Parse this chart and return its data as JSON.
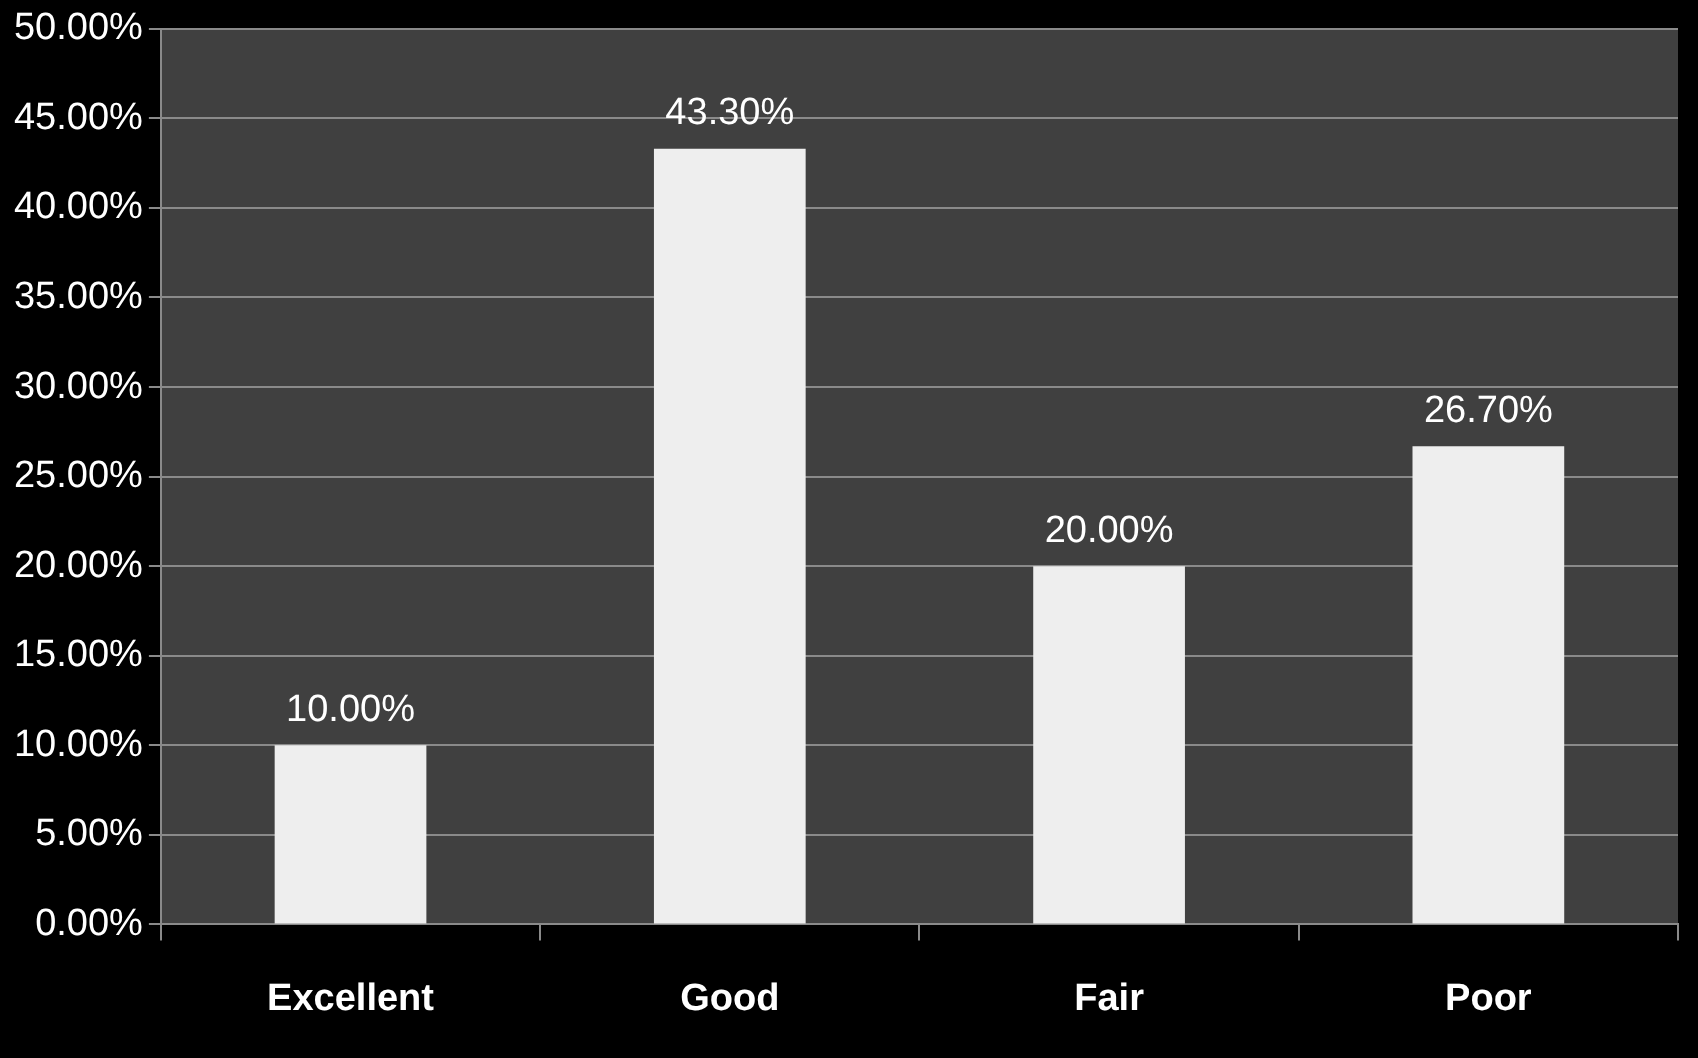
{
  "chart_data": {
    "type": "bar",
    "categories": [
      "Excellent",
      "Good",
      "Fair",
      "Poor"
    ],
    "values": [
      10,
      43.3,
      20,
      26.7
    ],
    "color": "#eeeeee",
    "value_labels": [
      "10.00%",
      "43.30%",
      "20.00%",
      "26.70%"
    ],
    "ylim": [
      0,
      50
    ],
    "yticks": [
      {
        "value": 0,
        "label": "0.00%"
      },
      {
        "value": 5,
        "label": "5.00%"
      },
      {
        "value": 10,
        "label": "10.00%"
      },
      {
        "value": 15,
        "label": "15.00%"
      },
      {
        "value": 20,
        "label": "20.00%"
      },
      {
        "value": 25,
        "label": "25.00%"
      },
      {
        "value": 30,
        "label": "30.00%"
      },
      {
        "value": 35,
        "label": "35.00%"
      },
      {
        "value": 40,
        "label": "40.00%"
      },
      {
        "value": 45,
        "label": "45.00%"
      },
      {
        "value": 50,
        "label": "50.00%"
      }
    ],
    "grid": "y",
    "legend": false
  }
}
